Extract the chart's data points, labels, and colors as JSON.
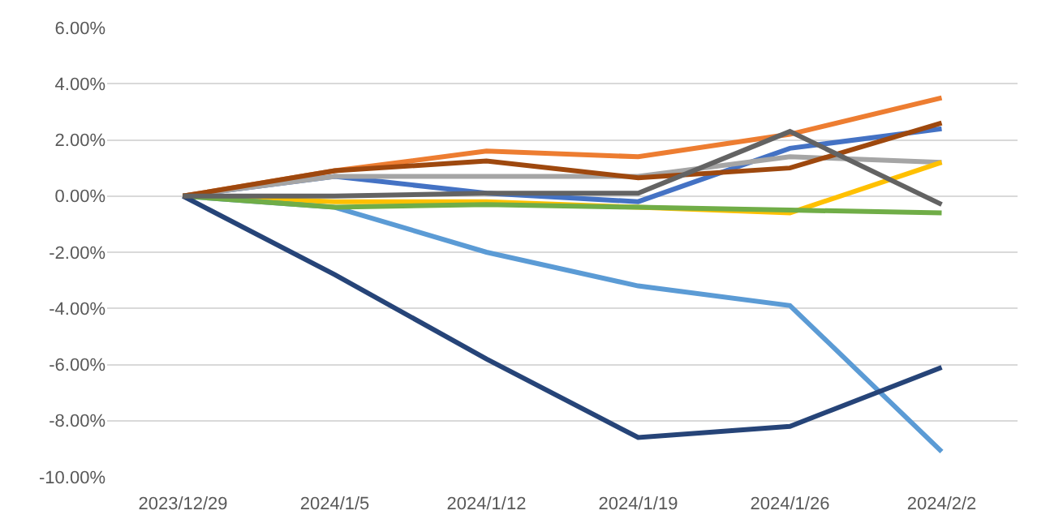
{
  "chart_data": {
    "type": "line",
    "categories": [
      "2023/12/29",
      "2024/1/5",
      "2024/1/12",
      "2024/1/19",
      "2024/1/26",
      "2024/2/2"
    ],
    "series": [
      {
        "color": "#4472c4",
        "values": [
          0,
          0.7,
          0.1,
          -0.2,
          1.7,
          2.4
        ]
      },
      {
        "color": "#ed7d31",
        "values": [
          0,
          0.9,
          1.6,
          1.4,
          2.2,
          3.5
        ]
      },
      {
        "color": "#a5a5a5",
        "values": [
          0,
          0.7,
          0.7,
          0.7,
          1.4,
          1.2
        ]
      },
      {
        "color": "#ffc000",
        "values": [
          0,
          -0.2,
          -0.2,
          -0.4,
          -0.6,
          1.2
        ]
      },
      {
        "color": "#5b9bd5",
        "values": [
          0,
          -0.4,
          -2.0,
          -3.2,
          -3.9,
          -9.1
        ]
      },
      {
        "color": "#70ad47",
        "values": [
          0,
          -0.4,
          -0.3,
          -0.4,
          -0.5,
          -0.6
        ]
      },
      {
        "color": "#264478",
        "values": [
          0,
          -2.8,
          -5.8,
          -8.6,
          -8.2,
          -6.1
        ]
      },
      {
        "color": "#9e480e",
        "values": [
          0,
          0.9,
          1.25,
          0.65,
          1.0,
          2.6
        ]
      },
      {
        "color": "#636363",
        "values": [
          0,
          0.0,
          0.1,
          0.1,
          2.3,
          -0.3
        ]
      }
    ],
    "ylim": [
      -10,
      6
    ],
    "yticks": [
      {
        "value": -10,
        "label": "-10.00%"
      },
      {
        "value": -8,
        "label": "-8.00%"
      },
      {
        "value": -6,
        "label": "-6.00%"
      },
      {
        "value": -4,
        "label": "-4.00%"
      },
      {
        "value": -2,
        "label": "-2.00%"
      },
      {
        "value": 0,
        "label": "0.00%"
      },
      {
        "value": 2,
        "label": "2.00%"
      },
      {
        "value": 4,
        "label": "4.00%"
      },
      {
        "value": 6,
        "label": "6.00%"
      }
    ],
    "grid": "y",
    "marker": "none",
    "line_style": "solid"
  }
}
